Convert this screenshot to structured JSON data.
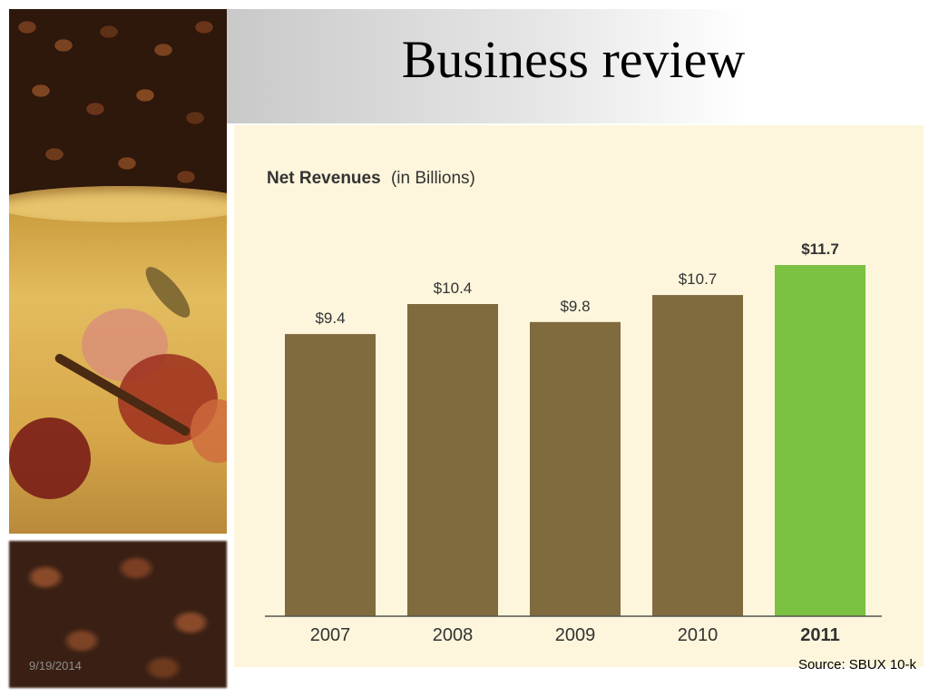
{
  "slide": {
    "title": "Business review",
    "date": "9/19/2014",
    "source": "Source: SBUX 10-k"
  },
  "colors": {
    "chart_background": "#fdf6dc",
    "bar_default": "#7f6b3e",
    "bar_highlight": "#7bc142",
    "text": "#333333"
  },
  "chart_data": {
    "type": "bar",
    "title": "Net Revenues",
    "title_suffix": "(in Billions)",
    "categories": [
      "2007",
      "2008",
      "2009",
      "2010",
      "2011"
    ],
    "values": [
      9.4,
      10.4,
      9.8,
      10.7,
      11.7
    ],
    "value_labels": [
      "$9.4",
      "$10.4",
      "$9.8",
      "$10.7",
      "$11.7"
    ],
    "highlight_category": "2011",
    "ylim": [
      0,
      11.7
    ],
    "xlabel": "",
    "ylabel": "",
    "grid": false
  }
}
